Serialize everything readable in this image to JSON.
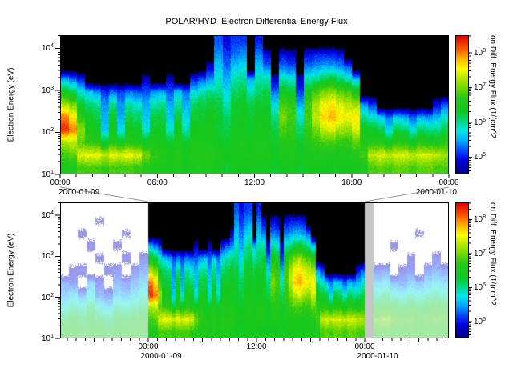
{
  "header": {
    "title": "POLAR/HYD  Electron Differential Energy Flux"
  },
  "panels": {
    "top": {
      "ylabel": "Electron Energy (eV)",
      "y_tick_exponents": [
        1,
        2,
        3,
        4
      ],
      "x_ticks": [
        "00:00",
        "06:00",
        "12:00",
        "18:00",
        "00:00"
      ],
      "date_left": "2000-01-09",
      "date_right": "2000-01-10"
    },
    "bottom": {
      "ylabel": "Electron Energy (eV)",
      "y_tick_exponents": [
        1,
        2,
        3,
        4
      ],
      "x_ticks": [
        "00:00",
        "12:00",
        "00:00"
      ],
      "date_left": "2000-01-09",
      "date_right": "2000-01-10"
    }
  },
  "colorbar": {
    "label": "on Diff. Energy Flux (1/(cm^2",
    "tick_exponents": [
      5,
      6,
      7,
      8
    ]
  },
  "chart_data": {
    "type": "heatmap",
    "title": "POLAR/HYD  Electron Differential Energy Flux",
    "ylabel": "Electron Energy (eV)",
    "y_scale": "log",
    "y_range_ev": [
      10,
      20480
    ],
    "value_label_visible": "on Diff. Energy Flux (1/(cm^2",
    "value_scale": "log10",
    "value_range_log10": [
      4.5,
      8.5
    ],
    "colorbar_tick_values": [
      "1e5",
      "1e6",
      "1e7",
      "1e8"
    ],
    "energy_bin_edges_ev": [
      10,
      20,
      40,
      80,
      160,
      320,
      640,
      1280,
      2560,
      5120,
      10240,
      20480
    ],
    "panels": [
      {
        "name": "top",
        "time_start": "2000-01-09 00:00",
        "time_end": "2000-01-10 00:00",
        "x_tick_labels": [
          "00:00",
          "06:00",
          "12:00",
          "18:00",
          "00:00"
        ],
        "bin_minutes": 30,
        "data_key": "main_columns"
      },
      {
        "name": "bottom",
        "time_start": "2000-01-08 14:15 (approx)",
        "time_end": "2000-01-10 09:20 (approx)",
        "highlight_start": "2000-01-09 00:00",
        "highlight_end": "2000-01-10 00:00",
        "x_tick_labels": [
          "00:00",
          "12:00",
          "00:00"
        ],
        "data_key": "pre_columns + main_columns(highlight) + post_columns, faded outside highlight"
      }
    ],
    "main_columns": [
      [
        6.5,
        6.8,
        7.2,
        8.3,
        8.0,
        7.2,
        6.4,
        5.5,
        0,
        0,
        0
      ],
      [
        6.5,
        6.9,
        7.3,
        8.0,
        7.6,
        7.0,
        6.2,
        5.3,
        0,
        0,
        0
      ],
      [
        6.8,
        7.4,
        6.9,
        7.1,
        6.7,
        6.3,
        5.8,
        5.0,
        0,
        0,
        0
      ],
      [
        6.8,
        7.5,
        6.7,
        6.5,
        6.3,
        6.1,
        5.6,
        0,
        0,
        0,
        0
      ],
      [
        6.8,
        7.5,
        6.6,
        6.4,
        6.2,
        6.0,
        5.4,
        0,
        0,
        0,
        0
      ],
      [
        6.7,
        7.3,
        6.3,
        5.6,
        5.5,
        5.4,
        5.1,
        0,
        0,
        0,
        0
      ],
      [
        6.8,
        7.5,
        6.6,
        6.4,
        6.3,
        6.0,
        5.3,
        0,
        0,
        0,
        0
      ],
      [
        6.8,
        7.4,
        6.4,
        5.7,
        5.5,
        5.4,
        5.1,
        0,
        0,
        0,
        0
      ],
      [
        6.8,
        7.5,
        6.6,
        6.4,
        6.2,
        5.9,
        5.3,
        0,
        0,
        0,
        0
      ],
      [
        6.7,
        7.4,
        6.5,
        6.3,
        6.1,
        5.8,
        5.2,
        0,
        0,
        0,
        0
      ],
      [
        6.6,
        7.0,
        6.4,
        5.8,
        5.6,
        5.5,
        5.2,
        4.8,
        0,
        0,
        0
      ],
      [
        6.5,
        6.7,
        6.5,
        6.3,
        6.2,
        5.9,
        5.4,
        0,
        0,
        0,
        0
      ],
      [
        6.5,
        6.6,
        6.4,
        6.3,
        6.2,
        6.0,
        5.5,
        0,
        0,
        0,
        0
      ],
      [
        6.4,
        6.5,
        6.3,
        5.8,
        5.6,
        5.5,
        5.2,
        4.8,
        0,
        0,
        0
      ],
      [
        6.5,
        6.6,
        6.5,
        6.4,
        6.2,
        6.0,
        5.6,
        0,
        0,
        0,
        0
      ],
      [
        6.4,
        6.5,
        6.3,
        5.9,
        5.7,
        5.5,
        5.3,
        0,
        0,
        0,
        0
      ],
      [
        6.5,
        6.6,
        6.5,
        6.4,
        6.3,
        6.1,
        5.7,
        5.0,
        0,
        0,
        0
      ],
      [
        6.5,
        6.6,
        6.5,
        6.4,
        6.3,
        6.2,
        5.9,
        5.2,
        0,
        0,
        0
      ],
      [
        6.5,
        6.6,
        6.5,
        6.4,
        6.4,
        6.3,
        6.0,
        5.4,
        4.8,
        0,
        0
      ],
      [
        6.4,
        6.5,
        6.4,
        6.3,
        6.3,
        6.2,
        6.0,
        5.8,
        5.6,
        5.4,
        5.2
      ],
      [
        6.3,
        6.4,
        6.3,
        6.2,
        6.1,
        5.9,
        5.7,
        5.5,
        5.3,
        5.1,
        4.9
      ],
      [
        6.4,
        6.5,
        6.4,
        6.4,
        6.3,
        6.3,
        6.1,
        5.9,
        5.6,
        5.3,
        5.1
      ],
      [
        6.4,
        6.5,
        6.5,
        6.4,
        6.4,
        6.3,
        6.2,
        6.0,
        5.7,
        5.4,
        5.1
      ],
      [
        6.4,
        6.5,
        6.4,
        6.3,
        6.3,
        6.2,
        5.9,
        5.5,
        0,
        0,
        0
      ],
      [
        6.4,
        6.5,
        6.5,
        6.4,
        6.4,
        6.3,
        6.1,
        5.9,
        5.6,
        5.3,
        5.0
      ],
      [
        6.4,
        6.5,
        6.5,
        6.4,
        6.4,
        6.3,
        6.2,
        5.9,
        5.3,
        4.9,
        0
      ],
      [
        6.3,
        6.4,
        6.3,
        6.2,
        6.0,
        5.7,
        5.3,
        4.8,
        0,
        0,
        0
      ],
      [
        6.4,
        6.5,
        6.6,
        6.8,
        7.0,
        6.8,
        6.4,
        5.9,
        5.3,
        4.9,
        0
      ],
      [
        6.4,
        6.5,
        6.6,
        6.7,
        6.8,
        6.7,
        6.3,
        5.8,
        5.2,
        4.8,
        0
      ],
      [
        6.3,
        6.4,
        6.3,
        6.1,
        5.8,
        5.5,
        5.1,
        4.8,
        0,
        0,
        0
      ],
      [
        6.4,
        6.5,
        6.6,
        6.7,
        6.8,
        6.8,
        6.4,
        5.9,
        5.3,
        4.9,
        0
      ],
      [
        6.4,
        6.5,
        6.7,
        7.0,
        7.3,
        7.2,
        6.8,
        6.0,
        5.4,
        5.0,
        0
      ],
      [
        6.4,
        6.5,
        6.8,
        7.3,
        7.7,
        7.5,
        7.0,
        6.2,
        5.5,
        5.0,
        0
      ],
      [
        6.4,
        6.5,
        6.8,
        7.4,
        7.8,
        7.6,
        7.1,
        6.3,
        5.5,
        5.0,
        0
      ],
      [
        6.4,
        6.5,
        6.7,
        7.2,
        7.6,
        7.4,
        6.9,
        6.1,
        5.4,
        4.9,
        0
      ],
      [
        6.4,
        6.5,
        6.7,
        7.1,
        7.5,
        7.3,
        6.8,
        5.9,
        5.2,
        0,
        0
      ],
      [
        6.4,
        6.6,
        6.9,
        7.4,
        7.6,
        7.2,
        6.5,
        5.6,
        0,
        0,
        0
      ],
      [
        6.5,
        6.8,
        6.6,
        6.4,
        6.0,
        5.4,
        0,
        0,
        0,
        0,
        0
      ],
      [
        6.8,
        7.3,
        6.6,
        6.3,
        5.8,
        5.1,
        0,
        0,
        0,
        0,
        0
      ],
      [
        6.9,
        7.4,
        6.6,
        6.2,
        5.6,
        0,
        0,
        0,
        0,
        0,
        0
      ],
      [
        6.8,
        7.3,
        6.4,
        5.7,
        5.3,
        0,
        0,
        0,
        0,
        0,
        0
      ],
      [
        6.9,
        7.4,
        6.6,
        6.2,
        5.6,
        0,
        0,
        0,
        0,
        0,
        0
      ],
      [
        6.9,
        7.4,
        6.6,
        6.1,
        5.5,
        0,
        0,
        0,
        0,
        0,
        0
      ],
      [
        6.8,
        7.3,
        6.4,
        5.8,
        5.2,
        0,
        0,
        0,
        0,
        0,
        0
      ],
      [
        6.9,
        7.4,
        6.6,
        6.1,
        5.5,
        0,
        0,
        0,
        0,
        0,
        0
      ],
      [
        6.9,
        7.4,
        6.5,
        6.0,
        5.4,
        0,
        0,
        0,
        0,
        0,
        0
      ],
      [
        6.8,
        7.3,
        6.5,
        6.0,
        5.5,
        4.9,
        0,
        0,
        0,
        0,
        0
      ],
      [
        6.8,
        7.2,
        6.6,
        6.2,
        5.8,
        5.2,
        0,
        0,
        0,
        0,
        0
      ]
    ],
    "pre_columns": [
      [
        6.4,
        6.2,
        5.8,
        5.4,
        5.2,
        0,
        0,
        0,
        0,
        0,
        0
      ],
      [
        6.4,
        6.3,
        6.0,
        5.6,
        5.0,
        4.8,
        0,
        0,
        0,
        0,
        0
      ],
      [
        6.3,
        6.2,
        5.9,
        5.3,
        0,
        5.0,
        0,
        0,
        4.8,
        0,
        0
      ],
      [
        6.4,
        6.3,
        6.1,
        5.7,
        5.4,
        0,
        0,
        4.9,
        0,
        0,
        0
      ],
      [
        6.4,
        6.2,
        5.8,
        5.2,
        5.0,
        0,
        4.8,
        0,
        0,
        4.7,
        0
      ],
      [
        6.3,
        6.1,
        5.6,
        5.1,
        0,
        4.9,
        0,
        0,
        0,
        0,
        0
      ],
      [
        6.4,
        6.3,
        6.0,
        5.5,
        5.2,
        5.0,
        0,
        4.8,
        0,
        0,
        0
      ],
      [
        6.4,
        6.2,
        5.9,
        5.4,
        5.1,
        0,
        4.9,
        0,
        4.7,
        0,
        0
      ],
      [
        6.5,
        6.3,
        6.0,
        5.6,
        5.3,
        5.0,
        0,
        0,
        0,
        0,
        0
      ],
      [
        6.5,
        6.4,
        6.1,
        5.8,
        5.5,
        5.2,
        4.9,
        0,
        0,
        0,
        0
      ]
    ],
    "post_columns": [
      [
        -1,
        -1,
        -1,
        -1,
        -1,
        -1,
        -1,
        -1,
        -1,
        -1,
        -1
      ],
      [
        6.6,
        6.9,
        6.3,
        5.9,
        5.5,
        5.0,
        0,
        0,
        0,
        0,
        0
      ],
      [
        6.6,
        7.0,
        6.4,
        6.0,
        5.6,
        5.1,
        0,
        0,
        0,
        0,
        0
      ],
      [
        6.5,
        6.8,
        6.3,
        5.8,
        5.3,
        0,
        0,
        4.8,
        0,
        0,
        0
      ],
      [
        6.5,
        6.7,
        6.2,
        5.7,
        5.2,
        4.9,
        0,
        0,
        0,
        0,
        0
      ],
      [
        6.5,
        6.8,
        6.3,
        5.9,
        5.4,
        5.0,
        4.8,
        0,
        0,
        0,
        0
      ],
      [
        6.4,
        6.6,
        6.2,
        5.8,
        5.3,
        0,
        0,
        0,
        4.7,
        0,
        0
      ],
      [
        6.5,
        6.7,
        6.3,
        5.9,
        5.5,
        5.1,
        0,
        0,
        0,
        0,
        0
      ],
      [
        6.5,
        6.8,
        6.4,
        6.0,
        5.6,
        5.2,
        4.9,
        0,
        0,
        0,
        0
      ],
      [
        6.5,
        6.7,
        6.3,
        5.9,
        5.5,
        5.1,
        0,
        0,
        0,
        0,
        0
      ]
    ],
    "colormap_stops": [
      [
        0.0,
        "#000080"
      ],
      [
        0.1,
        "#0000e0"
      ],
      [
        0.16,
        "#0040ff"
      ],
      [
        0.24,
        "#00a8ff"
      ],
      [
        0.31,
        "#00e8e8"
      ],
      [
        0.38,
        "#00d880"
      ],
      [
        0.45,
        "#10c820"
      ],
      [
        0.55,
        "#28c818"
      ],
      [
        0.62,
        "#70d800"
      ],
      [
        0.7,
        "#c0e800"
      ],
      [
        0.76,
        "#ffff00"
      ],
      [
        0.84,
        "#ffa800"
      ],
      [
        0.91,
        "#ff5000"
      ],
      [
        1.0,
        "#d80000"
      ]
    ],
    "no_data_color": "#000000",
    "faded_no_data_color": "#ffffff",
    "data_gap_color": "#c6c6c6"
  }
}
